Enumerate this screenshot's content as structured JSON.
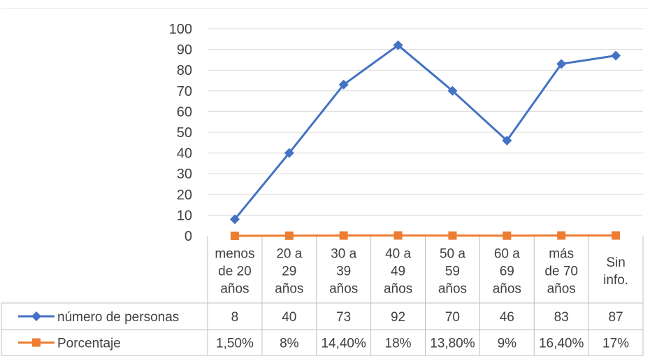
{
  "chart_data": {
    "type": "line",
    "categories": [
      [
        "menos",
        "de 20",
        "años"
      ],
      [
        "20 a",
        "29",
        "años"
      ],
      [
        "30 a",
        "39",
        "años"
      ],
      [
        "40 a",
        "49",
        "años"
      ],
      [
        "50 a",
        "59",
        "años"
      ],
      [
        "60 a",
        "69",
        "años"
      ],
      [
        "más",
        "de 70",
        "años"
      ],
      [
        "Sin",
        "info."
      ]
    ],
    "ylim": [
      0,
      100
    ],
    "yticks": [
      0,
      10,
      20,
      30,
      40,
      50,
      60,
      70,
      80,
      90,
      100
    ],
    "grid": true,
    "legend": "data-table-left",
    "series": [
      {
        "name": "número de personas",
        "values": [
          8,
          40,
          73,
          92,
          70,
          46,
          83,
          87
        ],
        "labels": [
          "8",
          "40",
          "73",
          "92",
          "70",
          "46",
          "83",
          "87"
        ],
        "color": "#4472C4",
        "marker": "diamond"
      },
      {
        "name": "Porcentaje",
        "values": [
          0.015,
          0.08,
          0.144,
          0.18,
          0.138,
          0.09,
          0.164,
          0.17
        ],
        "labels": [
          "1,50%",
          "8%",
          "14,40%",
          "18%",
          "13,80%",
          "9%",
          "16,40%",
          "17%"
        ],
        "color": "#ED7D31",
        "marker": "square"
      }
    ]
  }
}
